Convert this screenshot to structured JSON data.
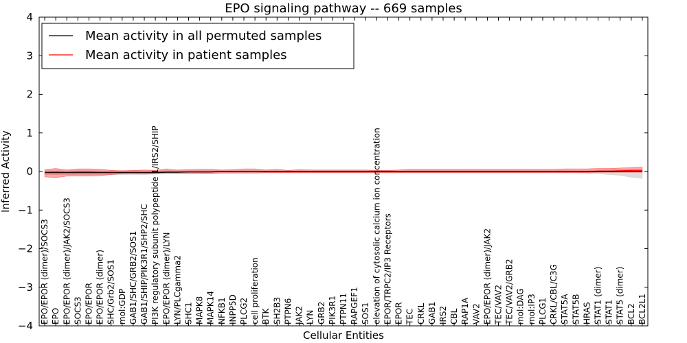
{
  "chart_data": {
    "type": "line",
    "title": "EPO signaling pathway -- 669 samples",
    "xlabel": "Cellular Entities",
    "ylabel": "Inferred Activity",
    "ylim": [
      -4,
      4
    ],
    "yticks": [
      "−4",
      "−3",
      "−2",
      "−1",
      "0",
      "1",
      "2",
      "3",
      "4"
    ],
    "yticks_values": [
      -4,
      -3,
      -2,
      -1,
      0,
      1,
      2,
      3,
      4
    ],
    "legend_position": "top-left",
    "categories": [
      "EPO/EPOR (dimer)/SOCS3",
      "EPO",
      "EPO/EPOR (dimer)/JAK2/SOCS3",
      "SOCS3",
      "EPO/EPOR",
      "EPO/EPOR (dimer)",
      "SHC/Grb2/SOS1",
      "mol:GDP",
      "GAB1/SHC/GRB2/SOS1",
      "GAB1/SHIP/PIK3R1/SHP2/SHC",
      "PI3K regulatory subunit polypeptide 1/IRS2/SHIP",
      "EPO/EPOR (dimer)/LYN",
      "LYN/PLCgamma2",
      "SHC1",
      "MAPK8",
      "MAPK14",
      "NFKB1",
      "INPP5D",
      "PLCG2",
      "cell proliferation",
      "BTK",
      "SH2B3",
      "PTPN6",
      "JAK2",
      "LYN",
      "GRB2",
      "PIK3R1",
      "PTPN11",
      "RAPGEF1",
      "SOS1",
      "elevation of cytosolic calcium ion concentration",
      "EPOR/TRPC2/IP3 Receptors",
      "EPOR",
      "TEC",
      "CRKL",
      "GAB1",
      "IRS2",
      "CBL",
      "RAP1A",
      "VAV2",
      "EPO/EPOR (dimer)/JAK2",
      "TEC/VAV2",
      "TEC/VAV2/GRB2",
      "mol:DAG",
      "mol:IP3",
      "PLCG1",
      "CRKL/CBL/C3G",
      "STAT5A",
      "STAT5B",
      "HRAS",
      "STAT1 (dimer)",
      "STAT1",
      "STAT5 (dimer)",
      "BCL2",
      "BCL2L1"
    ],
    "series": [
      {
        "name": "Mean activity in all permuted samples",
        "color": "#000000",
        "values": [
          -0.03,
          -0.03,
          -0.03,
          -0.03,
          -0.03,
          -0.03,
          -0.03,
          -0.03,
          -0.03,
          -0.03,
          -0.03,
          -0.02,
          -0.02,
          -0.01,
          -0.01,
          -0.01,
          0,
          0,
          0,
          0,
          0,
          0,
          0,
          0,
          0,
          0,
          0,
          0,
          0,
          0,
          0,
          0,
          0,
          0,
          0,
          0,
          0,
          0,
          0,
          0,
          0,
          0,
          0,
          0,
          0,
          0,
          0,
          0,
          0,
          0,
          0,
          0,
          0,
          0,
          0
        ],
        "band_upper": [
          0.02,
          0.02,
          0.02,
          0.02,
          0.02,
          0.02,
          0.02,
          0.02,
          0.02,
          0.02,
          0.02,
          0.02,
          0.02,
          0.02,
          0.02,
          0.02,
          0.02,
          0.02,
          0.02,
          0.02,
          0.02,
          0.02,
          0.02,
          0.02,
          0.02,
          0.02,
          0.02,
          0.02,
          0.02,
          0.02,
          0.02,
          0.02,
          0.02,
          0.02,
          0.02,
          0.02,
          0.02,
          0.02,
          0.02,
          0.02,
          0.02,
          0.02,
          0.02,
          0.02,
          0.02,
          0.02,
          0.02,
          0.02,
          0.02,
          0.02,
          0.03,
          0.04,
          0.04,
          0.05,
          0.05
        ],
        "band_lower": [
          -0.08,
          -0.08,
          -0.08,
          -0.08,
          -0.08,
          -0.08,
          -0.08,
          -0.08,
          -0.08,
          -0.08,
          -0.07,
          -0.06,
          -0.05,
          -0.05,
          -0.05,
          -0.05,
          -0.04,
          -0.04,
          -0.04,
          -0.04,
          -0.04,
          -0.04,
          -0.04,
          -0.04,
          -0.04,
          -0.04,
          -0.04,
          -0.04,
          -0.04,
          -0.04,
          -0.04,
          -0.04,
          -0.04,
          -0.04,
          -0.04,
          -0.04,
          -0.04,
          -0.04,
          -0.04,
          -0.04,
          -0.04,
          -0.04,
          -0.04,
          -0.04,
          -0.04,
          -0.04,
          -0.04,
          -0.04,
          -0.04,
          -0.05,
          -0.06,
          -0.08,
          -0.1,
          -0.15,
          -0.18
        ]
      },
      {
        "name": "Mean activity in patient samples",
        "color": "#ff0000",
        "values": [
          -0.02,
          -0.01,
          -0.02,
          -0.01,
          -0.01,
          -0.02,
          -0.02,
          -0.02,
          -0.02,
          -0.02,
          -0.02,
          -0.01,
          -0.01,
          -0.01,
          -0.01,
          -0.01,
          0,
          0,
          0,
          0,
          0,
          0,
          0,
          0,
          0,
          0,
          0,
          0,
          0,
          0,
          0,
          0,
          0,
          0,
          0,
          0,
          0,
          0,
          0,
          0,
          0,
          0,
          0,
          0,
          0,
          0,
          0,
          0,
          0,
          0,
          0.01,
          0.01,
          0.02,
          0.03,
          0.03
        ],
        "band_upper": [
          0.05,
          0.08,
          0.04,
          0.07,
          0.07,
          0.06,
          0.03,
          0.02,
          0.03,
          0.04,
          0.03,
          0.07,
          0.04,
          0.05,
          0.06,
          0.06,
          0.04,
          0.05,
          0.07,
          0.07,
          0.04,
          0.06,
          0.03,
          0.05,
          0.04,
          0.04,
          0.04,
          0.04,
          0.04,
          0.04,
          0.03,
          0.03,
          0.04,
          0.06,
          0.06,
          0.06,
          0.06,
          0.06,
          0.06,
          0.06,
          0.06,
          0.06,
          0.06,
          0.06,
          0.06,
          0.06,
          0.06,
          0.07,
          0.07,
          0.07,
          0.08,
          0.08,
          0.09,
          0.1,
          0.12
        ],
        "band_lower": [
          -0.14,
          -0.16,
          -0.12,
          -0.12,
          -0.12,
          -0.11,
          -0.08,
          -0.06,
          -0.05,
          -0.06,
          -0.05,
          -0.04,
          -0.05,
          -0.05,
          -0.05,
          -0.05,
          -0.04,
          -0.04,
          -0.04,
          -0.04,
          -0.03,
          -0.03,
          -0.03,
          -0.03,
          -0.03,
          -0.03,
          -0.03,
          -0.03,
          -0.03,
          -0.03,
          -0.03,
          -0.03,
          -0.03,
          -0.03,
          -0.03,
          -0.03,
          -0.03,
          -0.03,
          -0.03,
          -0.03,
          -0.03,
          -0.03,
          -0.03,
          -0.03,
          -0.03,
          -0.03,
          -0.03,
          -0.03,
          -0.03,
          -0.03,
          -0.02,
          -0.02,
          -0.02,
          -0.02,
          -0.02
        ]
      }
    ]
  }
}
